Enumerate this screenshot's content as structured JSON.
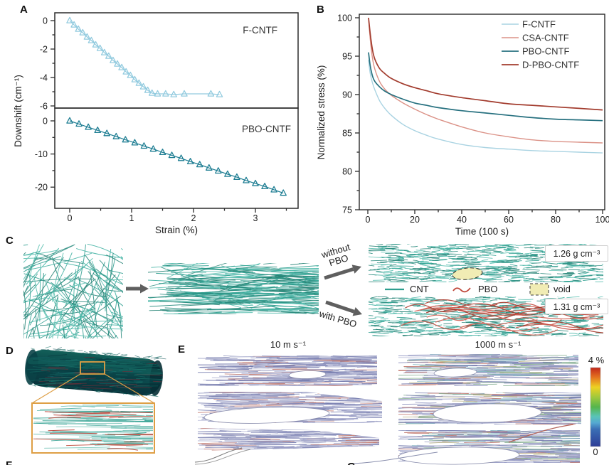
{
  "panels": {
    "a": {
      "label": "A"
    },
    "b": {
      "label": "B"
    },
    "c": {
      "label": "C",
      "arrow_without": "without PBO",
      "arrow_with": "with PBO",
      "density_without": "1.26 g cm⁻³",
      "density_with": "1.31 g cm⁻³",
      "legend": {
        "cnt": "CNT",
        "pbo": "PBO",
        "void": "void"
      }
    },
    "d": {
      "label": "D"
    },
    "e": {
      "label": "E",
      "left_title": "10 m s⁻¹",
      "right_title": "1000 m s⁻¹",
      "colorbar": {
        "max": "4 %",
        "min": "0"
      }
    },
    "f": {
      "label": "F"
    },
    "g": {
      "label": "G"
    }
  },
  "chart_data": [
    {
      "id": "raman_downshift",
      "type": "scatter",
      "xlabel": "Strain (%)",
      "ylabel": "Downshift (cm⁻¹)",
      "xlim": [
        -0.25,
        3.7
      ],
      "xticks": [
        0,
        1,
        2,
        3
      ],
      "xminors": [
        0.5,
        1.5,
        2.5,
        3.5
      ],
      "marker": "triangle-up-open",
      "subplots": [
        {
          "name": "F-CNTF",
          "color": "#93cbdf",
          "yticks": [
            0,
            -2,
            -4,
            -6
          ],
          "yminors": [
            -1,
            -3,
            -5
          ],
          "x": [
            0,
            0.07,
            0.14,
            0.21,
            0.28,
            0.35,
            0.42,
            0.49,
            0.56,
            0.63,
            0.7,
            0.77,
            0.84,
            0.91,
            0.98,
            1.05,
            1.12,
            1.19,
            1.26,
            1.33,
            1.42,
            1.55,
            1.68,
            1.85,
            2.28,
            2.42
          ],
          "y": [
            0,
            -0.3,
            -0.6,
            -0.85,
            -1.15,
            -1.4,
            -1.7,
            -1.95,
            -2.25,
            -2.5,
            -2.8,
            -3.05,
            -3.3,
            -3.6,
            -3.85,
            -4.15,
            -4.4,
            -4.65,
            -4.9,
            -5.1,
            -5.15,
            -5.15,
            -5.2,
            -5.15,
            -5.15,
            -5.2
          ]
        },
        {
          "name": "PBO-CNTF",
          "color": "#1f7e93",
          "yticks": [
            0,
            -10,
            -20
          ],
          "yminors": [
            -5,
            -15
          ],
          "x": [
            0,
            0.15,
            0.3,
            0.45,
            0.6,
            0.75,
            0.9,
            1.05,
            1.2,
            1.35,
            1.5,
            1.65,
            1.8,
            1.95,
            2.1,
            2.25,
            2.4,
            2.55,
            2.7,
            2.85,
            3.0,
            3.15,
            3.3,
            3.45
          ],
          "y": [
            0,
            -0.95,
            -1.9,
            -2.85,
            -3.8,
            -4.75,
            -5.7,
            -6.6,
            -7.6,
            -8.5,
            -9.5,
            -10.4,
            -11.3,
            -12.3,
            -13.2,
            -14.2,
            -15.1,
            -16.1,
            -17.0,
            -18.0,
            -18.9,
            -19.8,
            -20.8,
            -21.8
          ]
        }
      ]
    },
    {
      "id": "stress_relaxation",
      "type": "line",
      "xlabel": "Time (100 s)",
      "ylabel": "Normalized stress (%)",
      "xlim": [
        -4,
        101
      ],
      "ylim": [
        75,
        100.5
      ],
      "xticks": [
        0,
        20,
        40,
        60,
        80,
        100
      ],
      "xminors": [
        10,
        30,
        50,
        70,
        90
      ],
      "yticks": [
        75,
        80,
        85,
        90,
        95,
        100
      ],
      "yminors": [
        77.5,
        82.5,
        87.5,
        92.5,
        97.5
      ],
      "legend_position": "top-right",
      "x": [
        0.3,
        1,
        2,
        3,
        5,
        7,
        10,
        15,
        20,
        25,
        30,
        40,
        50,
        60,
        70,
        80,
        90,
        100
      ],
      "series": [
        {
          "name": "F-CNTF",
          "color": "#a9d3e2",
          "values": [
            94.5,
            92.8,
            91.5,
            90.6,
            89.2,
            88.3,
            87.3,
            86.1,
            85.3,
            84.7,
            84.2,
            83.5,
            83.1,
            82.9,
            82.7,
            82.6,
            82.5,
            82.4
          ]
        },
        {
          "name": "CSA-CNTF",
          "color": "#db9287",
          "values": [
            100,
            97.3,
            94.7,
            93.3,
            91.7,
            90.8,
            89.9,
            88.9,
            88.1,
            87.4,
            86.8,
            85.8,
            85.0,
            84.5,
            84.1,
            83.9,
            83.8,
            83.7
          ]
        },
        {
          "name": "PBO-CNTF",
          "color": "#26707f",
          "values": [
            95.5,
            93.8,
            92.4,
            91.7,
            91.0,
            90.5,
            90.0,
            89.4,
            88.9,
            88.6,
            88.3,
            87.9,
            87.6,
            87.3,
            87.0,
            86.8,
            86.7,
            86.6
          ]
        },
        {
          "name": "D-PBO-CNTF",
          "color": "#a23b2d",
          "values": [
            100,
            98.0,
            95.8,
            94.6,
            93.4,
            92.8,
            92.1,
            91.4,
            90.9,
            90.5,
            90.1,
            89.6,
            89.2,
            88.8,
            88.6,
            88.4,
            88.2,
            88.0
          ]
        }
      ]
    }
  ],
  "colors": {
    "cnt_teal": "#2e9e8f",
    "pbo_red": "#bf4538",
    "void_fill": "#f1ecb4",
    "callout_orange": "#de9f45",
    "fiber_blue": "#9095c2",
    "axis": "#2b2b2b"
  }
}
